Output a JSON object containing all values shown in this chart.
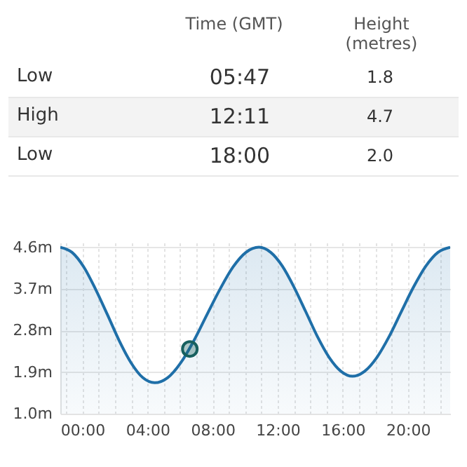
{
  "chart_data": {
    "type": "area",
    "annotations": [
      "Time (GMT)",
      "Height (metres)",
      "Low",
      "05:47",
      "1.8",
      "High",
      "12:11",
      "4.7",
      "Low",
      "18:00",
      "2.0"
    ],
    "series": [
      {
        "type": "area",
        "color": "#1f6fa8",
        "x": [
          -1.36,
          -0.64,
          0.09,
          0.81,
          1.54,
          2.26,
          2.99,
          3.71,
          4.44,
          5.24,
          6.04,
          6.85,
          7.65,
          8.45,
          9.25,
          10.05,
          10.85,
          11.57,
          12.29,
          13.0,
          13.72,
          14.44,
          15.16,
          15.88,
          16.6,
          17.35,
          18.1,
          18.85,
          19.6,
          20.35,
          21.1,
          21.85,
          22.6
        ],
        "values": [
          4.6,
          4.49,
          4.17,
          3.69,
          3.14,
          2.58,
          2.1,
          1.78,
          1.67,
          1.78,
          2.1,
          2.58,
          3.14,
          3.69,
          4.17,
          4.49,
          4.6,
          4.49,
          4.19,
          3.74,
          3.21,
          2.67,
          2.22,
          1.92,
          1.81,
          1.92,
          2.22,
          2.67,
          3.21,
          3.74,
          4.19,
          4.49,
          4.6
        ]
      },
      {
        "type": "scatter",
        "marker": "circle",
        "color": "#17605e",
        "x": [
          6.6
        ],
        "values": [
          2.4
        ]
      }
    ],
    "xlim": [
      -1.36,
      22.6
    ],
    "ylim": [
      1.0,
      4.7
    ],
    "xticks": [
      {
        "value": -1,
        "label": null
      },
      {
        "value": 0,
        "label": "00:00"
      },
      {
        "value": 1,
        "label": null
      },
      {
        "value": 2,
        "label": null
      },
      {
        "value": 3,
        "label": null
      },
      {
        "value": 4,
        "label": "04:00"
      },
      {
        "value": 5,
        "label": null
      },
      {
        "value": 6,
        "label": null
      },
      {
        "value": 7,
        "label": null
      },
      {
        "value": 8,
        "label": "08:00"
      },
      {
        "value": 9,
        "label": null
      },
      {
        "value": 10,
        "label": null
      },
      {
        "value": 11,
        "label": null
      },
      {
        "value": 12,
        "label": "12:00"
      },
      {
        "value": 13,
        "label": null
      },
      {
        "value": 14,
        "label": null
      },
      {
        "value": 15,
        "label": null
      },
      {
        "value": 16,
        "label": "16:00"
      },
      {
        "value": 17,
        "label": null
      },
      {
        "value": 18,
        "label": null
      },
      {
        "value": 19,
        "label": null
      },
      {
        "value": 20,
        "label": "20:00"
      },
      {
        "value": 21,
        "label": null
      },
      {
        "value": 22,
        "label": null
      }
    ],
    "yticks": [
      {
        "value": 1.0,
        "label": "1.0m"
      },
      {
        "value": 1.9,
        "label": "1.9m"
      },
      {
        "value": 2.8,
        "label": "2.8m"
      },
      {
        "value": 3.7,
        "label": "3.7m"
      },
      {
        "value": 4.6,
        "label": "4.6m"
      }
    ],
    "grid": true
  }
}
